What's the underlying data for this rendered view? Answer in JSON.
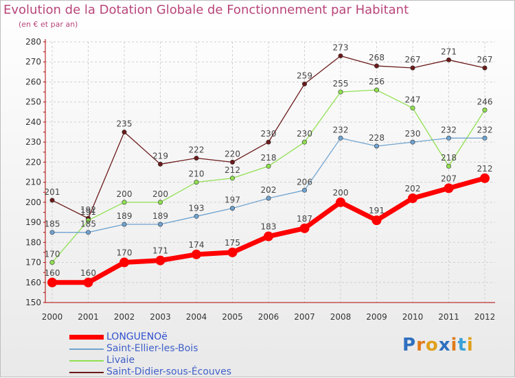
{
  "chart_data": {
    "type": "line",
    "title": "Evolution de la Dotation Globale de Fonctionnement par Habitant",
    "subtitle": "(en € et par an)",
    "categories": [
      "2000",
      "2001",
      "2002",
      "2003",
      "2004",
      "2005",
      "2006",
      "2007",
      "2008",
      "2009",
      "2010",
      "2011",
      "2012"
    ],
    "ylim": [
      150,
      280
    ],
    "yticks": [
      150,
      160,
      170,
      180,
      190,
      200,
      210,
      220,
      230,
      240,
      250,
      260,
      270,
      280
    ],
    "grid": true,
    "legend_position": "bottom-left",
    "series": [
      {
        "name": "LONGUENOë",
        "color": "#ff0000",
        "values": [
          160,
          160,
          170,
          171,
          174,
          175,
          183,
          187,
          200,
          191,
          202,
          207,
          212
        ]
      },
      {
        "name": "Saint-Ellier-les-Bois",
        "color": "#6fa3d0",
        "values": [
          185,
          185,
          189,
          189,
          193,
          197,
          202,
          206,
          232,
          228,
          230,
          232,
          232
        ]
      },
      {
        "name": "Livaie",
        "color": "#90e050",
        "values": [
          170,
          191,
          200,
          200,
          210,
          212,
          218,
          230,
          255,
          256,
          247,
          218,
          246
        ]
      },
      {
        "name": "Saint-Didier-sous-Écouves",
        "color": "#6b1a1a",
        "values": [
          201,
          192,
          235,
          219,
          222,
          220,
          230,
          259,
          273,
          268,
          267,
          271,
          267
        ]
      }
    ]
  },
  "logo": {
    "letters": [
      "P",
      "r",
      "o",
      "x",
      "i",
      "t",
      "i"
    ],
    "colors": [
      "#2f6fbf",
      "#e07b1c",
      "#e0a01c",
      "#2f6fbf",
      "#e07b1c",
      "#39a0d8",
      "#e0a01c"
    ]
  }
}
